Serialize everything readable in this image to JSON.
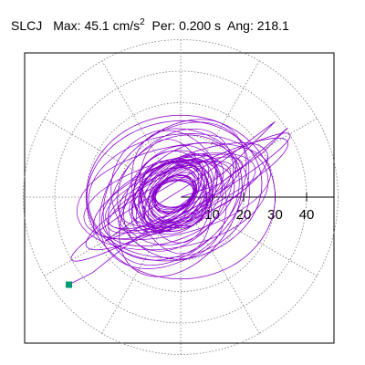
{
  "header": {
    "station": "SLCJ",
    "max_label": "Max:",
    "max_value": "45.1",
    "max_unit": "cm/s",
    "max_unit_power": "2",
    "per_label": "Per:",
    "per_value": "0.200 s",
    "ang_label": "Ang:",
    "ang_value": "218.1"
  },
  "chart_data": {
    "type": "scatter",
    "subtype": "polar-hodogram",
    "title": "SLCJ Max: 45.1 cm/s2 Per: 0.200 s Ang: 218.1",
    "radial_ticks": [
      10,
      20,
      30,
      40
    ],
    "rmax": 50,
    "angular_grid_deg": 30,
    "grid": true,
    "max_amplitude": 45.1,
    "max_angle_deg": 218.1,
    "trace_color": "#8800cc",
    "marker_color": "#009977",
    "trace": {
      "name": "",
      "description_points": [
        [
          0,
          0
        ],
        [
          12,
          4
        ],
        [
          26,
          14
        ],
        [
          34,
          22
        ],
        [
          20,
          10
        ],
        [
          4,
          -2
        ],
        [
          -14,
          -10
        ],
        [
          -24,
          -14
        ],
        [
          -10,
          -4
        ],
        [
          6,
          6
        ],
        [
          22,
          18
        ],
        [
          30,
          24
        ],
        [
          14,
          8
        ],
        [
          -2,
          -4
        ],
        [
          -18,
          -16
        ],
        [
          -28,
          -24
        ],
        [
          -35.5,
          -27.8
        ]
      ]
    },
    "end_marker": {
      "r": 45.1,
      "angle_deg": 218.1
    }
  }
}
